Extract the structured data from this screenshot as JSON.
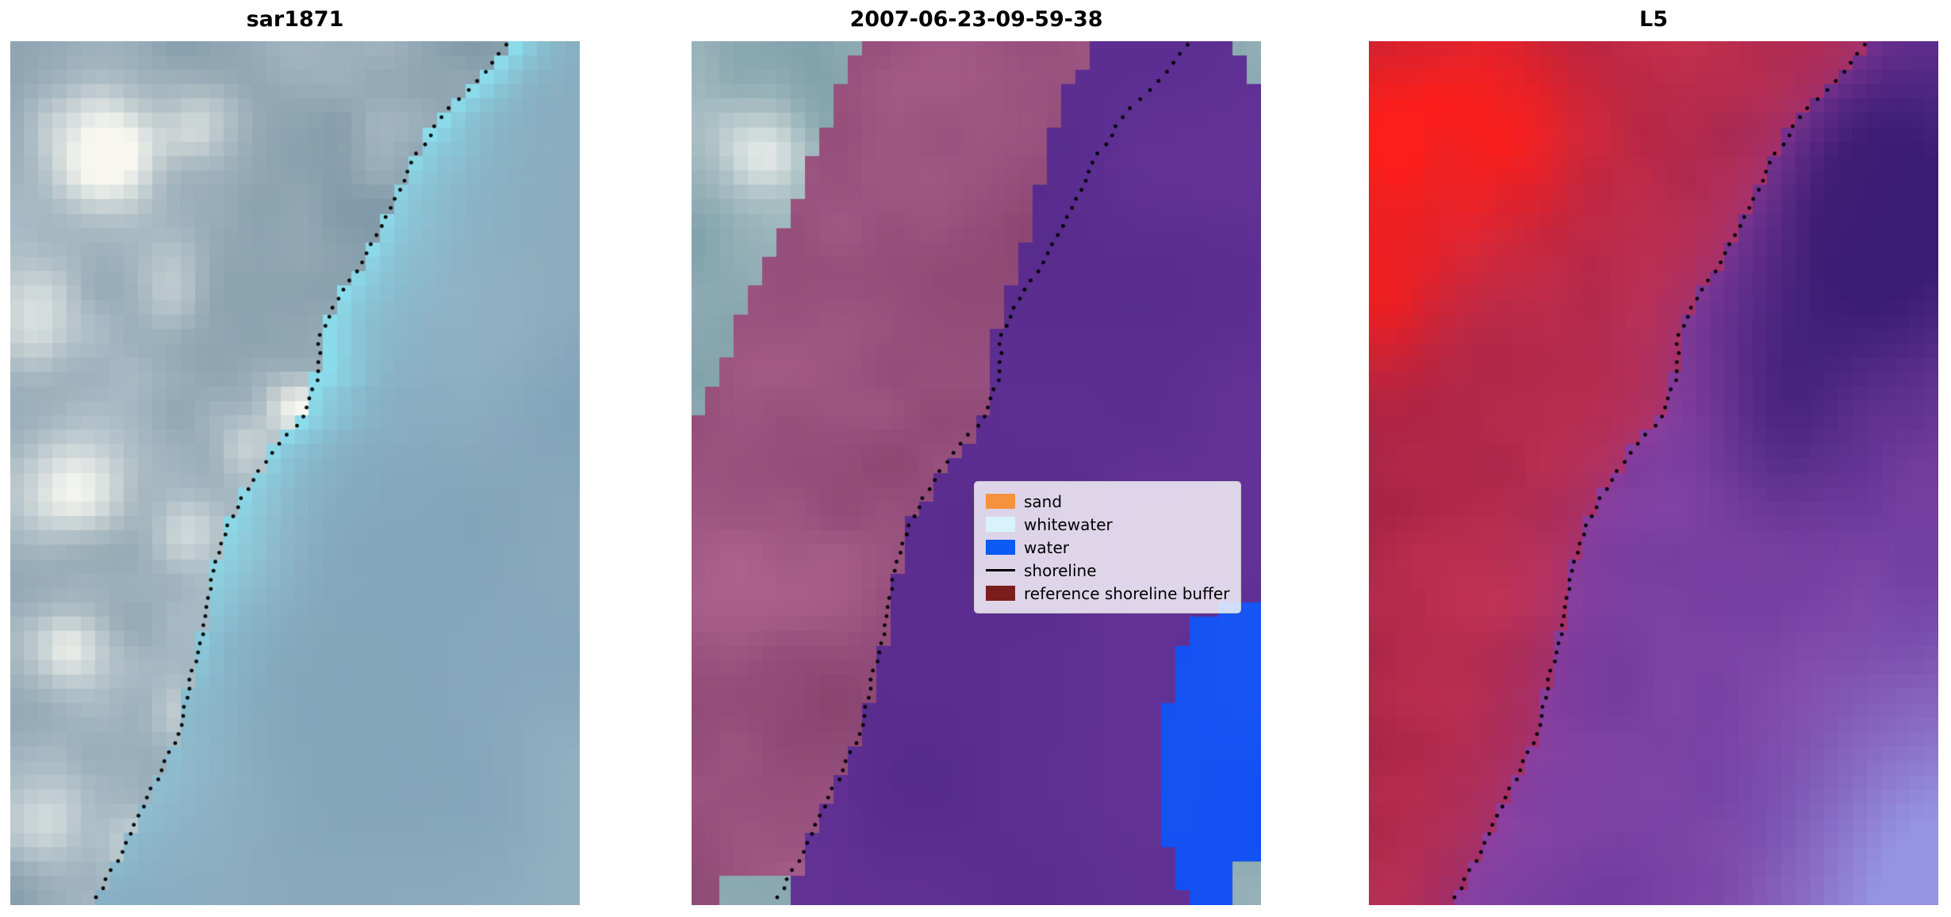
{
  "figure": {
    "background": "#ffffff"
  },
  "chart_data": {
    "type": "image-grid",
    "description": "Three-panel satellite shoreline-mapping figure: SAR-like RGB composite, classified image with legend, and L5 false-color composite; dotted black reference shoreline crosses all panels diagonally.",
    "panels": [
      {
        "title": "sar1871",
        "kind": "rgb-composite"
      },
      {
        "title": "2007-06-23-09-59-38",
        "kind": "classification-overlay"
      },
      {
        "title": "L5",
        "kind": "false-color-composite"
      }
    ],
    "legend": {
      "position": "center-right-of-middle-panel",
      "items": [
        {
          "label": "sand",
          "type": "patch",
          "color": "#f6913e"
        },
        {
          "label": "whitewater",
          "type": "patch",
          "color": "#d8f3fb"
        },
        {
          "label": "water",
          "type": "patch",
          "color": "#0a5cf5"
        },
        {
          "label": "shoreline",
          "type": "line",
          "color": "#000000"
        },
        {
          "label": "reference shoreline buffer",
          "type": "patch",
          "color": "#7c1d1d"
        }
      ]
    },
    "shoreline_path": [
      [
        0.0,
        0.875
      ],
      [
        0.04,
        0.83
      ],
      [
        0.08,
        0.765
      ],
      [
        0.13,
        0.715
      ],
      [
        0.19,
        0.67
      ],
      [
        0.25,
        0.625
      ],
      [
        0.3,
        0.575
      ],
      [
        0.34,
        0.545
      ],
      [
        0.4,
        0.535
      ],
      [
        0.44,
        0.51
      ],
      [
        0.48,
        0.455
      ],
      [
        0.52,
        0.415
      ],
      [
        0.57,
        0.375
      ],
      [
        0.62,
        0.355
      ],
      [
        0.68,
        0.34
      ],
      [
        0.74,
        0.315
      ],
      [
        0.8,
        0.295
      ],
      [
        0.85,
        0.26
      ],
      [
        0.9,
        0.225
      ],
      [
        0.95,
        0.185
      ],
      [
        1.0,
        0.145
      ]
    ],
    "region_edges": {
      "buffer_left": [
        [
          0.0,
          0.295
        ],
        [
          0.08,
          0.25
        ],
        [
          0.16,
          0.2
        ],
        [
          0.24,
          0.145
        ],
        [
          0.32,
          0.09
        ],
        [
          0.4,
          0.035
        ],
        [
          0.46,
          0.0
        ],
        [
          1.0,
          0.0
        ]
      ],
      "water_left": [
        [
          0.0,
          0.72
        ],
        [
          0.06,
          0.66
        ],
        [
          0.12,
          0.625
        ],
        [
          0.2,
          0.6
        ],
        [
          0.28,
          0.56
        ],
        [
          0.34,
          0.53
        ],
        [
          0.42,
          0.515
        ],
        [
          0.46,
          0.5
        ],
        [
          0.5,
          0.44
        ],
        [
          0.55,
          0.39
        ],
        [
          0.6,
          0.365
        ],
        [
          0.68,
          0.345
        ],
        [
          0.76,
          0.315
        ],
        [
          0.82,
          0.29
        ],
        [
          0.88,
          0.245
        ],
        [
          0.94,
          0.2
        ],
        [
          1.0,
          0.16
        ]
      ],
      "blue_left": [
        [
          0.655,
          0.93
        ],
        [
          0.675,
          0.87
        ],
        [
          0.71,
          0.855
        ],
        [
          0.76,
          0.838
        ],
        [
          0.82,
          0.822
        ],
        [
          0.88,
          0.82
        ],
        [
          0.93,
          0.838
        ],
        [
          0.97,
          0.855
        ],
        [
          1.0,
          0.868
        ]
      ]
    },
    "palette": {
      "p1": {
        "waterA": [
          134,
          166,
          188
        ],
        "waterB": [
          152,
          180,
          198
        ],
        "waterDark": [
          116,
          150,
          168
        ],
        "cyan": [
          140,
          226,
          240
        ],
        "landDark": [
          124,
          149,
          164
        ],
        "landLight": [
          176,
          193,
          203
        ],
        "cloud": [
          247,
          247,
          240
        ]
      },
      "p2": {
        "tealA": [
          120,
          155,
          165
        ],
        "tealB": [
          165,
          188,
          194
        ],
        "cloud": [
          240,
          242,
          238
        ],
        "magentaA": [
          140,
          70,
          115
        ],
        "magentaB": [
          180,
          105,
          150
        ],
        "magentaDark": [
          118,
          52,
          96
        ],
        "purpleA": [
          86,
          42,
          140
        ],
        "purpleB": [
          100,
          51,
          151
        ],
        "blue": [
          18,
          80,
          242
        ]
      },
      "p3": {
        "redA": [
          165,
          35,
          70
        ],
        "redB": [
          202,
          52,
          80
        ],
        "brightRed": [
          252,
          30,
          26
        ],
        "purpleA": [
          106,
          56,
          158
        ],
        "purpleB": [
          136,
          73,
          171
        ],
        "indigo": [
          58,
          28,
          116
        ],
        "periwinkle": [
          150,
          148,
          228
        ],
        "shoreMagenta": [
          162,
          60,
          148
        ],
        "landPurple": [
          150,
          55,
          135
        ]
      },
      "shoreline_dots": "#000000"
    },
    "cloud_blobs_panel1": [
      [
        0.16,
        0.13,
        0.1,
        0.07,
        1.2
      ],
      [
        0.34,
        0.1,
        0.07,
        0.05,
        0.7
      ],
      [
        0.05,
        0.32,
        0.07,
        0.06,
        0.9
      ],
      [
        0.28,
        0.28,
        0.06,
        0.05,
        0.55
      ],
      [
        0.505,
        0.425,
        0.05,
        0.035,
        1.3
      ],
      [
        0.42,
        0.47,
        0.05,
        0.04,
        0.5
      ],
      [
        0.11,
        0.52,
        0.1,
        0.06,
        0.95
      ],
      [
        0.32,
        0.57,
        0.06,
        0.04,
        0.5
      ],
      [
        0.1,
        0.7,
        0.08,
        0.05,
        0.85
      ],
      [
        0.3,
        0.78,
        0.05,
        0.04,
        0.45
      ],
      [
        0.06,
        0.9,
        0.07,
        0.05,
        0.55
      ],
      [
        0.22,
        0.93,
        0.05,
        0.04,
        0.4
      ]
    ]
  }
}
